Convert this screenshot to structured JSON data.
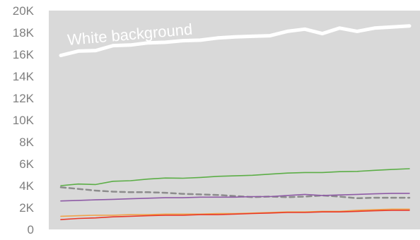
{
  "chart_data": {
    "type": "line",
    "title": "",
    "xlabel": "",
    "ylabel": "",
    "ylim": [
      0,
      20000
    ],
    "yticks": [
      0,
      2000,
      4000,
      6000,
      8000,
      10000,
      12000,
      14000,
      16000,
      18000,
      20000
    ],
    "ytick_labels": [
      "0",
      "2K",
      "4K",
      "6K",
      "8K",
      "10K",
      "12K",
      "14K",
      "16K",
      "18K",
      "20K"
    ],
    "x": [
      1,
      2,
      3,
      4,
      5,
      6,
      7,
      8,
      9,
      10,
      11,
      12,
      13,
      14,
      15,
      16,
      17,
      18,
      19,
      20,
      21
    ],
    "grid": false,
    "legend": "none",
    "plot_background": "#d9d9d9",
    "annotations": [
      {
        "text": "White background",
        "color": "#ffffff",
        "series": "top-white-line"
      }
    ],
    "series": [
      {
        "color": "#ffffff",
        "style": "solid",
        "width": "thick",
        "values": [
          15900,
          16300,
          16350,
          16800,
          16850,
          17050,
          17100,
          17250,
          17300,
          17500,
          17600,
          17650,
          17700,
          18100,
          18300,
          17900,
          18400,
          18100,
          18400,
          18500,
          18600
        ]
      },
      {
        "color": "#5cae47",
        "style": "solid",
        "values": [
          4000,
          4150,
          4100,
          4400,
          4450,
          4600,
          4700,
          4680,
          4750,
          4850,
          4900,
          4950,
          5050,
          5150,
          5200,
          5200,
          5280,
          5300,
          5400,
          5480,
          5550
        ]
      },
      {
        "color": "#8c8c8c",
        "style": "dashed",
        "values": [
          3850,
          3700,
          3550,
          3450,
          3400,
          3400,
          3350,
          3250,
          3200,
          3150,
          3050,
          2950,
          3000,
          2950,
          3000,
          3100,
          3000,
          2850,
          2900,
          2900,
          2900
        ]
      },
      {
        "color": "#8e5ba6",
        "style": "solid",
        "values": [
          2600,
          2650,
          2700,
          2750,
          2800,
          2850,
          2900,
          2900,
          2950,
          2950,
          2950,
          3000,
          3000,
          3100,
          3200,
          3100,
          3150,
          3200,
          3250,
          3300,
          3300
        ]
      },
      {
        "color": "#f0a34a",
        "style": "solid",
        "values": [
          1200,
          1250,
          1300,
          1300,
          1350,
          1350,
          1400,
          1400,
          1400,
          1450,
          1450,
          1500,
          1550,
          1600,
          1600,
          1650,
          1650,
          1750,
          1800,
          1850,
          1850
        ]
      },
      {
        "color": "#e8392a",
        "style": "solid",
        "values": [
          900,
          1000,
          1050,
          1150,
          1200,
          1250,
          1300,
          1300,
          1350,
          1350,
          1400,
          1450,
          1500,
          1550,
          1550,
          1600,
          1600,
          1650,
          1700,
          1750,
          1750
        ]
      }
    ]
  }
}
